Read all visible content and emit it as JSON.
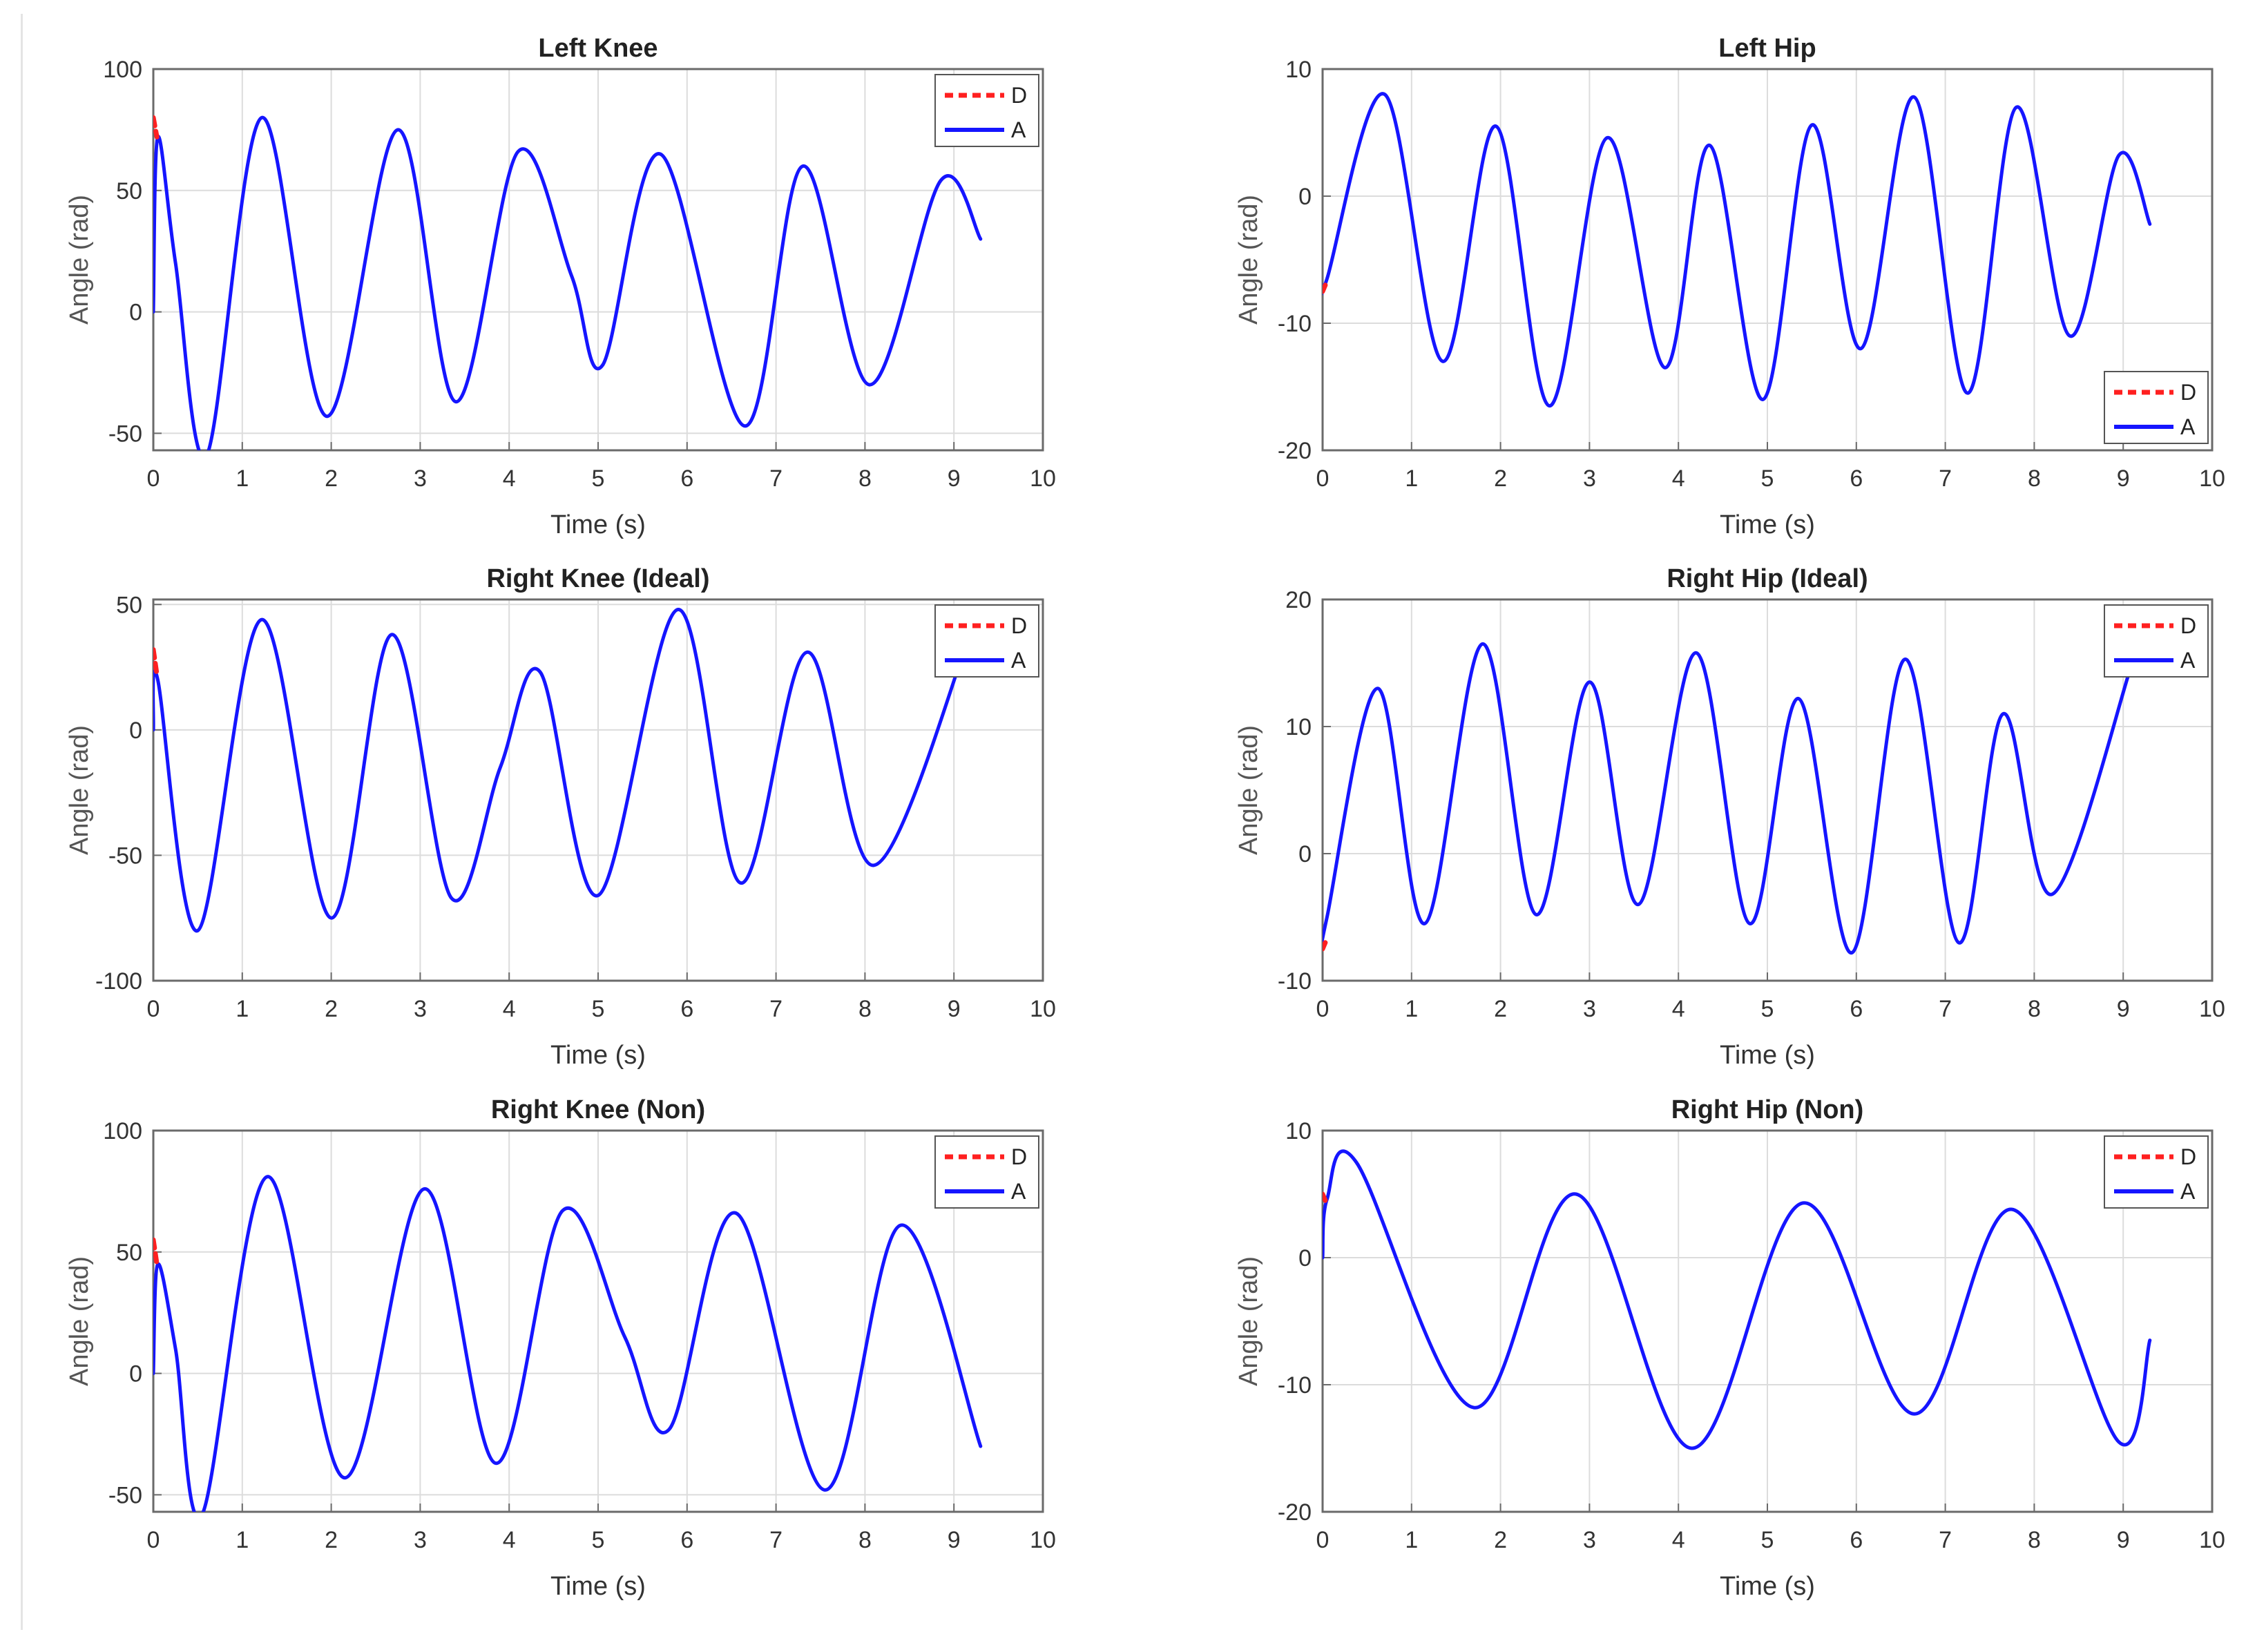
{
  "chart_data": [
    {
      "type": "line",
      "title": "Left Knee",
      "xlabel": "Time (s)",
      "ylabel": "Angle (rad)",
      "xlim": [
        0,
        10
      ],
      "ylim": [
        -57,
        100
      ],
      "xticks": [
        "0",
        "1",
        "2",
        "3",
        "4",
        "5",
        "6",
        "7",
        "8",
        "9",
        "10"
      ],
      "yticks": [
        -50,
        0,
        50,
        100
      ],
      "grid": true,
      "legend_position": "top-right",
      "series": [
        {
          "name": "D",
          "color": "#ff2020",
          "dash": true,
          "x": [
            0,
            0.04
          ],
          "y": [
            80,
            72
          ]
        },
        {
          "name": "A",
          "color": "#1515ff",
          "dash": false,
          "x": [
            0,
            0.05,
            0.25,
            0.6,
            1.22,
            1.95,
            2.75,
            3.4,
            4.1,
            4.7,
            5.05,
            5.7,
            6.65,
            7.3,
            8.05,
            8.85,
            9.3
          ],
          "y": [
            0,
            72,
            20,
            -59,
            80,
            -43,
            75,
            -37,
            66,
            15,
            -22,
            65,
            -47,
            60,
            -30,
            54,
            30
          ]
        }
      ]
    },
    {
      "type": "line",
      "title": "Left Hip",
      "xlabel": "Time (s)",
      "ylabel": "Angle (rad)",
      "xlim": [
        0,
        10
      ],
      "ylim": [
        -20,
        10
      ],
      "xticks": [
        "0",
        "1",
        "2",
        "3",
        "4",
        "5",
        "6",
        "7",
        "8",
        "9",
        "10"
      ],
      "yticks": [
        -20,
        -10,
        0,
        10
      ],
      "grid": true,
      "legend_position": "bottom-right",
      "series": [
        {
          "name": "D",
          "color": "#ff2020",
          "dash": true,
          "x": [
            0,
            0.03
          ],
          "y": [
            -7.5,
            -7
          ]
        },
        {
          "name": "A",
          "color": "#1515ff",
          "dash": false,
          "x": [
            0,
            0.05,
            0.7,
            1.35,
            1.95,
            2.55,
            3.2,
            3.85,
            4.35,
            4.95,
            5.5,
            6.05,
            6.65,
            7.25,
            7.8,
            8.4,
            8.95,
            9.3
          ],
          "y": [
            -7,
            -6.5,
            8,
            -13,
            5.5,
            -16.5,
            4.6,
            -13.5,
            4,
            -16,
            5.6,
            -12,
            7.8,
            -15.5,
            7,
            -11,
            3.2,
            -2.2
          ]
        }
      ]
    },
    {
      "type": "line",
      "title": "Right Knee (Ideal)",
      "xlabel": "Time (s)",
      "ylabel": "Angle (rad)",
      "xlim": [
        0,
        10
      ],
      "ylim": [
        -100,
        52
      ],
      "xticks": [
        "0",
        "1",
        "2",
        "3",
        "4",
        "5",
        "6",
        "7",
        "8",
        "9",
        "10"
      ],
      "yticks": [
        -100,
        -50,
        0,
        50
      ],
      "grid": true,
      "legend_position": "top-right",
      "series": [
        {
          "name": "D",
          "color": "#ff2020",
          "dash": true,
          "x": [
            0,
            0.04
          ],
          "y": [
            32,
            22
          ]
        },
        {
          "name": "A",
          "color": "#1515ff",
          "dash": false,
          "x": [
            0,
            0.05,
            0.5,
            1.22,
            2.0,
            2.68,
            3.35,
            3.9,
            4.35,
            5.0,
            5.9,
            6.6,
            7.35,
            8.1,
            9.2
          ],
          "y": [
            0,
            20,
            -80,
            44,
            -75,
            38,
            -67,
            -15,
            23,
            -66,
            48,
            -61,
            31,
            -54,
            40
          ]
        }
      ]
    },
    {
      "type": "line",
      "title": "Right Hip (Ideal)",
      "xlabel": "Time (s)",
      "ylabel": "Angle (rad)",
      "xlim": [
        0,
        10
      ],
      "ylim": [
        -10,
        20
      ],
      "xticks": [
        "0",
        "1",
        "2",
        "3",
        "4",
        "5",
        "6",
        "7",
        "8",
        "9",
        "10"
      ],
      "yticks": [
        -10,
        0,
        10,
        20
      ],
      "grid": true,
      "legend_position": "top-right",
      "series": [
        {
          "name": "D",
          "color": "#ff2020",
          "dash": true,
          "x": [
            0,
            0.03
          ],
          "y": [
            -7.5,
            -7
          ]
        },
        {
          "name": "A",
          "color": "#1515ff",
          "dash": false,
          "x": [
            0,
            0.05,
            0.62,
            1.15,
            1.8,
            2.4,
            3.0,
            3.55,
            4.2,
            4.8,
            5.35,
            5.95,
            6.55,
            7.15,
            7.65,
            8.2,
            9.1
          ],
          "y": [
            -7,
            -5,
            13,
            -5.5,
            16.5,
            -4.8,
            13.5,
            -4,
            15.8,
            -5.5,
            12.2,
            -7.8,
            15.3,
            -7,
            11,
            -3.2,
            15
          ]
        }
      ]
    },
    {
      "type": "line",
      "title": "Right Knee (Non)",
      "xlabel": "Time (s)",
      "ylabel": "Angle (rad)",
      "xlim": [
        0,
        10
      ],
      "ylim": [
        -57,
        100
      ],
      "xticks": [
        "0",
        "1",
        "2",
        "3",
        "4",
        "5",
        "6",
        "7",
        "8",
        "9",
        "10"
      ],
      "yticks": [
        -50,
        0,
        50,
        100
      ],
      "grid": true,
      "legend_position": "top-right",
      "series": [
        {
          "name": "D",
          "color": "#ff2020",
          "dash": true,
          "x": [
            0,
            0.04
          ],
          "y": [
            55,
            45
          ]
        },
        {
          "name": "A",
          "color": "#1515ff",
          "dash": false,
          "x": [
            0,
            0.05,
            0.25,
            0.55,
            1.28,
            2.15,
            3.05,
            3.85,
            4.6,
            5.3,
            5.8,
            6.55,
            7.55,
            8.4,
            9.3
          ],
          "y": [
            0,
            45,
            10,
            -58,
            81,
            -43,
            76,
            -37,
            67,
            15,
            -23,
            66,
            -48,
            61,
            -30
          ]
        }
      ]
    },
    {
      "type": "line",
      "title": "Right Hip (Non)",
      "xlabel": "Time (s)",
      "ylabel": "Angle (rad)",
      "xlim": [
        0,
        10
      ],
      "ylim": [
        -20,
        10
      ],
      "xticks": [
        "0",
        "1",
        "2",
        "3",
        "4",
        "5",
        "6",
        "7",
        "8",
        "9",
        "10"
      ],
      "yticks": [
        -20,
        -10,
        0,
        10
      ],
      "grid": true,
      "legend_position": "top-right",
      "series": [
        {
          "name": "D",
          "color": "#ff2020",
          "dash": true,
          "x": [
            0,
            0.03
          ],
          "y": [
            5,
            4.5
          ]
        },
        {
          "name": "A",
          "color": "#1515ff",
          "dash": false,
          "x": [
            0,
            0.05,
            0.38,
            1.7,
            2.85,
            4.15,
            5.4,
            6.65,
            7.75,
            8.95,
            9.3
          ],
          "y": [
            0,
            4.6,
            7.5,
            -11.8,
            5,
            -15,
            4.3,
            -12.3,
            3.8,
            -14.5,
            -6.5
          ]
        }
      ]
    }
  ]
}
